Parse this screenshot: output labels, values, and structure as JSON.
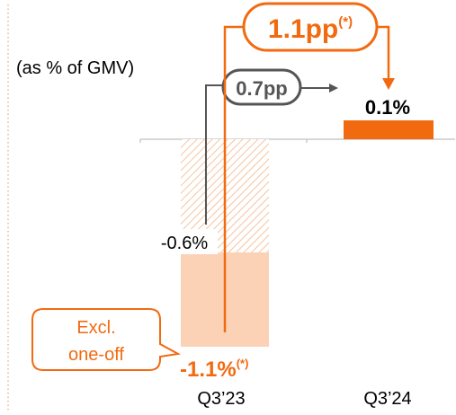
{
  "chart_data": {
    "type": "bar",
    "ylabel": "(as % of GMV)",
    "categories": [
      "Q3’23",
      "Q3’24"
    ],
    "series": [
      {
        "values": [
          -1.1,
          0.1
        ]
      }
    ],
    "breakdown_q3_23": {
      "reported": -1.1,
      "excluding_one_off": -0.6,
      "one_off_portion": -0.5
    },
    "data_labels": {
      "q3_23_excl": "-0.6%",
      "q3_23_total": "-1.1%",
      "q3_23_total_suffix": "(*)",
      "q3_24": "0.1%"
    },
    "annotations": {
      "bubble_excl_line1": "Excl.",
      "bubble_excl_line2": "one-off",
      "delta_small": "0.7pp",
      "delta_big": "1.1pp",
      "delta_big_suffix": "(*)"
    },
    "colors": {
      "accent": "#f26a10",
      "light_fill": "#fbd2b6",
      "hatch": "#f4b58c",
      "dark": "#555555",
      "axis": "#bfbfbf",
      "border_dots": "#f2a070"
    }
  }
}
